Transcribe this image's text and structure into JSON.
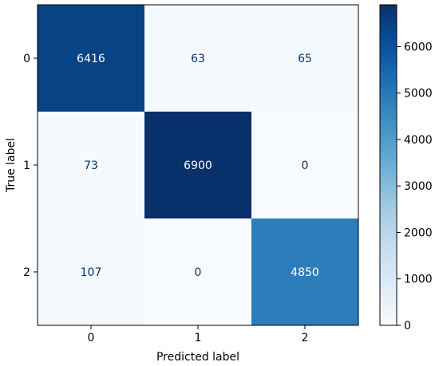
{
  "chart_data": {
    "type": "heatmap",
    "xlabel": "Predicted label",
    "ylabel": "True label",
    "x_categories": [
      "0",
      "1",
      "2"
    ],
    "y_categories": [
      "0",
      "1",
      "2"
    ],
    "values": [
      [
        6416,
        63,
        65
      ],
      [
        73,
        6900,
        0
      ],
      [
        107,
        0,
        4850
      ]
    ],
    "colormap": "Blues",
    "colorbar": {
      "range": [
        0,
        6900
      ],
      "ticks": [
        0,
        1000,
        2000,
        3000,
        4000,
        5000,
        6000
      ]
    },
    "grid": false
  }
}
